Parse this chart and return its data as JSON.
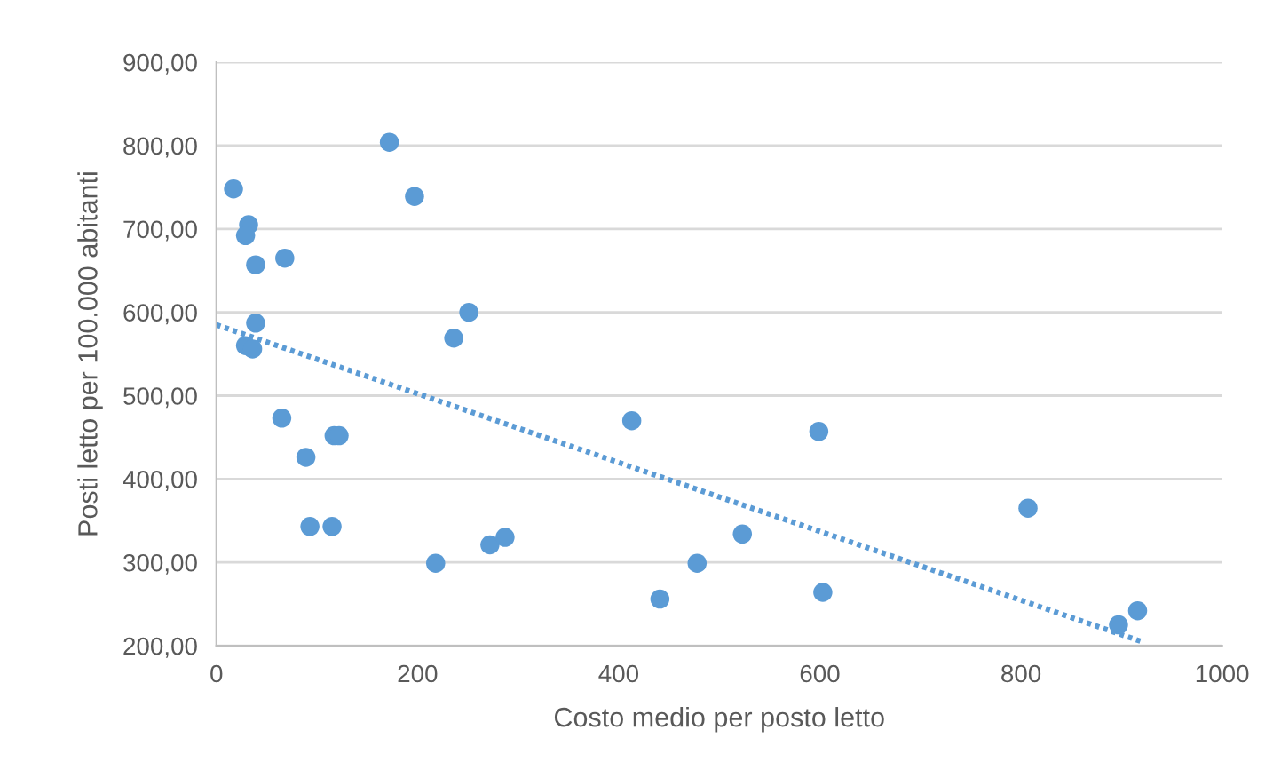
{
  "chart_data": {
    "type": "scatter",
    "xlabel": "Costo medio per posto letto",
    "ylabel": "Posti letto per 100.000 abitanti",
    "xlim": [
      0,
      1000
    ],
    "xticks": [
      0,
      200,
      400,
      600,
      800,
      1000
    ],
    "ylim": [
      200,
      900
    ],
    "yticks": [
      {
        "value": 200,
        "label": "200,00"
      },
      {
        "value": 300,
        "label": "300,00"
      },
      {
        "value": 400,
        "label": "400,00"
      },
      {
        "value": 500,
        "label": "500,00"
      },
      {
        "value": 600,
        "label": "600,00"
      },
      {
        "value": 700,
        "label": "700,00"
      },
      {
        "value": 800,
        "label": "800,00"
      },
      {
        "value": 900,
        "label": "900,00"
      }
    ],
    "grid": "y",
    "legend": false,
    "series": [
      {
        "color": "#5b9bd5",
        "marker": "circle",
        "x": [
          17,
          32,
          29,
          39,
          68,
          172,
          197,
          39,
          29,
          36,
          251,
          236,
          65,
          117,
          122,
          89,
          93,
          115,
          218,
          272,
          287,
          413,
          441,
          478,
          523,
          599,
          603,
          807,
          897,
          916
        ],
        "values": [
          748,
          705,
          692,
          657,
          665,
          804,
          739,
          587,
          560,
          556,
          600,
          569,
          473,
          452,
          452,
          426,
          343,
          343,
          299,
          321,
          330,
          470,
          256,
          299,
          334,
          457,
          264,
          365,
          225,
          242
        ]
      },
      {
        "type": "line",
        "color": "#5b9bd5",
        "marker": "none",
        "line_style": "dotted",
        "x": [
          0,
          920
        ],
        "values": [
          585,
          205
        ]
      }
    ]
  }
}
